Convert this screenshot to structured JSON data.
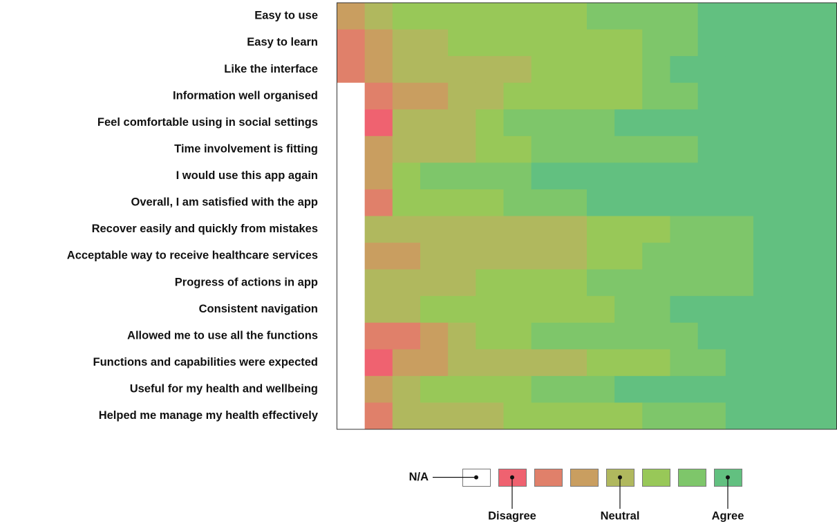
{
  "chart_data": {
    "type": "heatmap",
    "categories": [
      "Easy to use",
      "Easy to learn",
      "Like the interface",
      "Information well organised",
      "Feel comfortable using in social settings",
      "Time involvement is fitting",
      "I would use this app again",
      "Overall, I am satisfied with the app",
      "Recover easily and quickly from mistakes",
      "Acceptable way to receive healthcare services",
      "Progress of actions in app",
      "Consistent navigation",
      "Allowed me to use all the functions",
      "Functions and capabilities were expected",
      "Useful for my health and wellbeing",
      "Helped me manage my health effectively"
    ],
    "values": [
      [
        3,
        4,
        5,
        5,
        5,
        5,
        5,
        5,
        5,
        6,
        6,
        6,
        6,
        7,
        7,
        7,
        7,
        7
      ],
      [
        2,
        3,
        4,
        4,
        5,
        5,
        5,
        5,
        5,
        5,
        5,
        6,
        6,
        7,
        7,
        7,
        7,
        7
      ],
      [
        2,
        3,
        4,
        4,
        4,
        4,
        4,
        5,
        5,
        5,
        5,
        6,
        7,
        7,
        7,
        7,
        7,
        7
      ],
      [
        0,
        2,
        3,
        3,
        4,
        4,
        5,
        5,
        5,
        5,
        5,
        6,
        6,
        7,
        7,
        7,
        7,
        7
      ],
      [
        0,
        1,
        4,
        4,
        4,
        5,
        6,
        6,
        6,
        6,
        7,
        7,
        7,
        7,
        7,
        7,
        7,
        7
      ],
      [
        0,
        3,
        4,
        4,
        4,
        5,
        5,
        6,
        6,
        6,
        6,
        6,
        6,
        7,
        7,
        7,
        7,
        7
      ],
      [
        0,
        3,
        5,
        6,
        6,
        6,
        6,
        7,
        7,
        7,
        7,
        7,
        7,
        7,
        7,
        7,
        7,
        7
      ],
      [
        0,
        2,
        5,
        5,
        5,
        5,
        6,
        6,
        6,
        7,
        7,
        7,
        7,
        7,
        7,
        7,
        7,
        7
      ],
      [
        0,
        4,
        4,
        4,
        4,
        4,
        4,
        4,
        4,
        5,
        5,
        5,
        6,
        6,
        6,
        7,
        7,
        7
      ],
      [
        0,
        3,
        3,
        4,
        4,
        4,
        4,
        4,
        4,
        5,
        5,
        6,
        6,
        6,
        6,
        7,
        7,
        7
      ],
      [
        0,
        4,
        4,
        4,
        4,
        5,
        5,
        5,
        5,
        6,
        6,
        6,
        6,
        6,
        6,
        7,
        7,
        7
      ],
      [
        0,
        4,
        4,
        5,
        5,
        5,
        5,
        5,
        5,
        5,
        6,
        6,
        7,
        7,
        7,
        7,
        7,
        7
      ],
      [
        0,
        2,
        2,
        3,
        4,
        5,
        5,
        6,
        6,
        6,
        6,
        6,
        6,
        7,
        7,
        7,
        7,
        7
      ],
      [
        0,
        1,
        3,
        3,
        4,
        4,
        4,
        4,
        4,
        5,
        5,
        5,
        6,
        6,
        7,
        7,
        7,
        7
      ],
      [
        0,
        3,
        4,
        5,
        5,
        5,
        5,
        6,
        6,
        6,
        7,
        7,
        7,
        7,
        7,
        7,
        7,
        7
      ],
      [
        0,
        2,
        4,
        4,
        4,
        4,
        5,
        5,
        5,
        5,
        5,
        6,
        6,
        6,
        7,
        7,
        7,
        7
      ]
    ],
    "colors": [
      "#ffffff",
      "#ef6270",
      "#e0806a",
      "#c99e60",
      "#b0b85e",
      "#98c858",
      "#7ec66a",
      "#62c080"
    ],
    "legend": [
      {
        "label": "N/A",
        "value": 0
      },
      {
        "label": "Disagree",
        "value": 1
      },
      {
        "label": "Neutral",
        "value": 4
      },
      {
        "label": "Agree",
        "value": 7
      }
    ]
  }
}
